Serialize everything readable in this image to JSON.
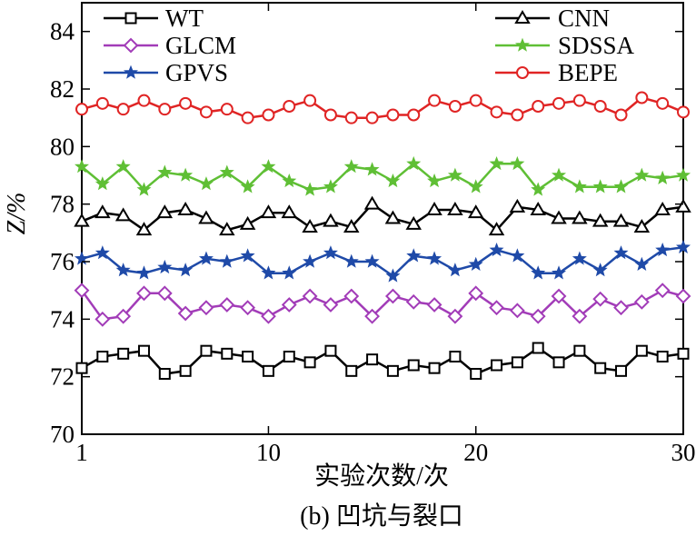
{
  "chart_data": {
    "type": "line",
    "xlabel": "实验次数/次",
    "ylabel": "Z/%",
    "caption": "(b) 凹坑与裂口",
    "xlim": [
      1,
      30
    ],
    "ylim": [
      70,
      85
    ],
    "xticks": [
      1,
      10,
      20,
      30
    ],
    "yticks": [
      70,
      72,
      74,
      76,
      78,
      80,
      82,
      84
    ],
    "grid": false,
    "legend_position": "top",
    "x": [
      1,
      2,
      3,
      4,
      5,
      6,
      7,
      8,
      9,
      10,
      11,
      12,
      13,
      14,
      15,
      16,
      17,
      18,
      19,
      20,
      21,
      22,
      23,
      24,
      25,
      26,
      27,
      28,
      29,
      30
    ],
    "series": [
      {
        "name": "WT",
        "color": "#000000",
        "marker": "square",
        "values": [
          72.3,
          72.7,
          72.8,
          72.9,
          72.1,
          72.2,
          72.9,
          72.8,
          72.7,
          72.2,
          72.7,
          72.5,
          72.9,
          72.2,
          72.6,
          72.2,
          72.4,
          72.3,
          72.7,
          72.1,
          72.4,
          72.5,
          73.0,
          72.5,
          72.9,
          72.3,
          72.2,
          72.9,
          72.7,
          72.8
        ]
      },
      {
        "name": "GLCM",
        "color": "#a23cb8",
        "marker": "diamond",
        "values": [
          75.0,
          74.0,
          74.1,
          74.9,
          74.9,
          74.2,
          74.4,
          74.5,
          74.4,
          74.1,
          74.5,
          74.8,
          74.5,
          74.8,
          74.1,
          74.8,
          74.6,
          74.5,
          74.1,
          74.9,
          74.4,
          74.3,
          74.1,
          74.8,
          74.1,
          74.7,
          74.4,
          74.6,
          75.0,
          74.8
        ]
      },
      {
        "name": "GPVS",
        "color": "#1f4aa8",
        "marker": "star",
        "values": [
          76.1,
          76.3,
          75.7,
          75.6,
          75.8,
          75.7,
          76.1,
          76.0,
          76.2,
          75.6,
          75.6,
          76.0,
          76.3,
          76.0,
          76.0,
          75.5,
          76.2,
          76.1,
          75.7,
          75.9,
          76.4,
          76.2,
          75.6,
          75.6,
          76.1,
          75.7,
          76.3,
          75.9,
          76.4,
          76.5
        ]
      },
      {
        "name": "CNN",
        "color": "#000000",
        "marker": "triangle",
        "values": [
          77.4,
          77.7,
          77.6,
          77.1,
          77.7,
          77.8,
          77.5,
          77.1,
          77.3,
          77.7,
          77.7,
          77.2,
          77.4,
          77.2,
          78.0,
          77.5,
          77.3,
          77.8,
          77.8,
          77.7,
          77.1,
          77.9,
          77.8,
          77.5,
          77.5,
          77.4,
          77.4,
          77.2,
          77.8,
          77.9
        ]
      },
      {
        "name": "SDSSA",
        "color": "#5fbf35",
        "marker": "star",
        "values": [
          79.3,
          78.7,
          79.3,
          78.5,
          79.1,
          79.0,
          78.7,
          79.1,
          78.6,
          79.3,
          78.8,
          78.5,
          78.6,
          79.3,
          79.2,
          78.8,
          79.4,
          78.8,
          79.0,
          78.6,
          79.4,
          79.4,
          78.5,
          79.0,
          78.6,
          78.6,
          78.6,
          79.0,
          78.9,
          79.0
        ]
      },
      {
        "name": "BEPE",
        "color": "#e02424",
        "marker": "circle",
        "values": [
          81.3,
          81.5,
          81.3,
          81.6,
          81.3,
          81.5,
          81.2,
          81.3,
          81.0,
          81.1,
          81.4,
          81.6,
          81.1,
          81.0,
          81.0,
          81.1,
          81.1,
          81.6,
          81.4,
          81.6,
          81.2,
          81.1,
          81.4,
          81.5,
          81.6,
          81.4,
          81.1,
          81.7,
          81.5,
          81.2
        ]
      }
    ]
  }
}
